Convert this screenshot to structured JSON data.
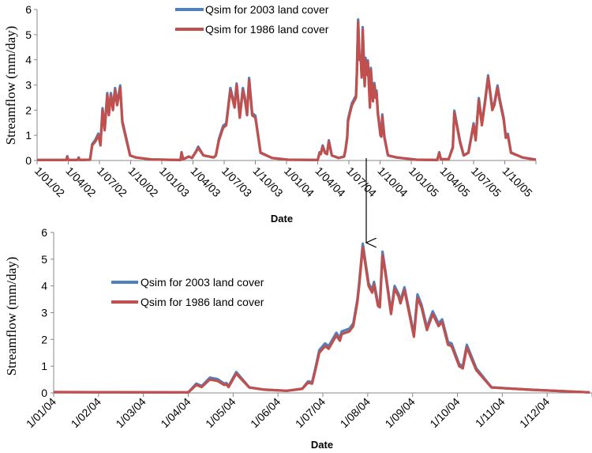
{
  "chart_data": [
    {
      "type": "line",
      "xlabel": "Date",
      "ylabel": "Streamflow (mm/day)",
      "ylim": [
        0,
        6
      ],
      "yticks": [
        "0",
        "1",
        "2",
        "3",
        "4",
        "5",
        "6"
      ],
      "x_unit": "months since 1/01/02",
      "xlim": [
        0,
        48
      ],
      "xtick_labels": [
        "1/01/02",
        "1/04/02",
        "1/07/02",
        "1/10/02",
        "1/01/03",
        "1/04/03",
        "1/07/03",
        "1/10/03",
        "1/01/04",
        "1/04/04",
        "1/07/04",
        "1/10/04",
        "1/01/05",
        "1/04/05",
        "1/07/05",
        "1/10/05"
      ],
      "legend": "top-center",
      "x": [
        0,
        2.8,
        2.9,
        3.0,
        3.9,
        4.0,
        4.1,
        5.1,
        5.3,
        5.6,
        5.9,
        6.1,
        6.3,
        6.5,
        6.75,
        6.9,
        7.1,
        7.3,
        7.5,
        7.7,
        8.0,
        8.2,
        8.6,
        8.95,
        9.5,
        11,
        13.8,
        13.9,
        14.05,
        14.6,
        14.9,
        15.3,
        15.5,
        16.0,
        17.0,
        17.2,
        17.5,
        17.9,
        18.2,
        18.6,
        19.0,
        19.2,
        19.5,
        19.8,
        20.0,
        20.2,
        20.4,
        20.7,
        21.0,
        21.5,
        22.6,
        24.1,
        27.0,
        27.18,
        27.3,
        27.48,
        27.7,
        27.9,
        28.07,
        28.36,
        29.0,
        29.54,
        29.67,
        29.84,
        29.92,
        30.05,
        30.3,
        30.68,
        30.77,
        30.89,
        31.02,
        31.14,
        31.23,
        31.33,
        31.52,
        31.6,
        31.73,
        31.82,
        32.03,
        32.11,
        32.32,
        32.45,
        32.58,
        32.66,
        32.79,
        33.04,
        33.12,
        33.21,
        33.42,
        33.76,
        34.6,
        36.5,
        38.5,
        38.7,
        38.85,
        39.6,
        40.0,
        40.15,
        40.7,
        41.05,
        41.5,
        42.0,
        42.2,
        42.5,
        42.8,
        43.1,
        43.4,
        43.8,
        44.0,
        44.3,
        44.5,
        44.9,
        45.1,
        45.3,
        45.6,
        46.7,
        48
      ],
      "series": [
        {
          "name": "Qsim for 2003 land cover",
          "color": "#4F81BD",
          "values": [
            0.02,
            0.02,
            0.17,
            0.02,
            0.02,
            0.12,
            0.02,
            0.03,
            0.65,
            0.82,
            1.07,
            0.65,
            2.08,
            1.28,
            2.68,
            1.88,
            2.68,
            2.08,
            2.88,
            2.28,
            2.98,
            1.57,
            0.86,
            0.2,
            0.12,
            0.04,
            0.02,
            0.33,
            0.05,
            0.16,
            0.1,
            0.38,
            0.55,
            0.2,
            0.12,
            0.21,
            0.86,
            1.38,
            1.48,
            2.88,
            2.18,
            3.06,
            1.78,
            2.88,
            2.48,
            1.88,
            3.28,
            1.88,
            1.78,
            0.32,
            0.1,
            0.03,
            0.02,
            0.33,
            0.27,
            0.6,
            0.33,
            0.27,
            0.8,
            0.2,
            0.1,
            0.16,
            0.44,
            0.96,
            1.63,
            1.88,
            2.28,
            2.58,
            3.48,
            5.6,
            4.08,
            4.18,
            3.38,
            5.3,
            3.03,
            4.08,
            3.48,
            3.98,
            2.18,
            3.68,
            2.43,
            3.08,
            2.58,
            2.78,
            1.93,
            1.07,
            1.02,
            1.83,
            0.96,
            0.2,
            0.12,
            0.03,
            0.02,
            0.33,
            0.05,
            0.05,
            0.55,
            1.98,
            0.76,
            0.2,
            0.32,
            1.48,
            0.86,
            2.48,
            1.48,
            2.38,
            3.38,
            2.08,
            2.28,
            2.98,
            2.48,
            1.68,
            0.96,
            1.06,
            0.32,
            0.12,
            0.03
          ]
        },
        {
          "name": "Qsim for 1986 land cover",
          "color": "#C0504D",
          "values": [
            0.02,
            0.02,
            0.15,
            0.02,
            0.02,
            0.1,
            0.02,
            0.03,
            0.6,
            0.75,
            1.0,
            0.6,
            2.0,
            1.2,
            2.6,
            1.8,
            2.6,
            2.0,
            2.8,
            2.2,
            2.9,
            1.5,
            0.8,
            0.2,
            0.12,
            0.04,
            0.02,
            0.3,
            0.05,
            0.15,
            0.1,
            0.35,
            0.5,
            0.2,
            0.12,
            0.2,
            0.8,
            1.3,
            1.4,
            2.8,
            2.1,
            3.0,
            1.7,
            2.8,
            2.4,
            1.8,
            3.2,
            1.8,
            1.7,
            0.3,
            0.1,
            0.03,
            0.02,
            0.3,
            0.25,
            0.55,
            0.3,
            0.25,
            0.75,
            0.2,
            0.1,
            0.15,
            0.4,
            0.9,
            1.55,
            1.8,
            2.2,
            2.5,
            3.4,
            5.5,
            4.0,
            4.1,
            3.3,
            5.2,
            2.95,
            4.0,
            3.4,
            3.9,
            2.1,
            3.6,
            2.35,
            3.0,
            2.5,
            2.7,
            1.85,
            1.0,
            0.95,
            1.75,
            0.9,
            0.2,
            0.12,
            0.03,
            0.02,
            0.3,
            0.05,
            0.05,
            0.5,
            1.9,
            0.7,
            0.2,
            0.3,
            1.4,
            0.8,
            2.4,
            1.4,
            2.3,
            3.3,
            2.0,
            2.2,
            2.9,
            2.4,
            1.6,
            0.9,
            1.0,
            0.3,
            0.12,
            0.03
          ]
        }
      ]
    },
    {
      "type": "line",
      "xlabel": "Date",
      "ylabel": "Streamflow (mm/day)",
      "ylim": [
        0,
        6
      ],
      "yticks": [
        "0",
        "1",
        "2",
        "3",
        "4",
        "5",
        "6"
      ],
      "x_unit": "months since 1/01/04",
      "xlim": [
        0,
        12
      ],
      "xtick_labels": [
        "1/01/04",
        "1/02/04",
        "1/03/04",
        "1/04/04",
        "1/05/04",
        "1/06/04",
        "1/07/04",
        "1/08/04",
        "1/09/04",
        "1/10/04",
        "1/11/04",
        "1/12/04"
      ],
      "legend": "upper-left",
      "annotation": "arrow from top chart to the peak near 1/08/04",
      "x": [
        0,
        3.0,
        3.18,
        3.3,
        3.48,
        3.65,
        3.8,
        3.85,
        3.9,
        4.07,
        4.36,
        4.7,
        5.2,
        5.54,
        5.67,
        5.76,
        5.84,
        5.92,
        6.05,
        6.13,
        6.3,
        6.38,
        6.42,
        6.59,
        6.68,
        6.77,
        6.81,
        6.89,
        7.02,
        7.1,
        7.14,
        7.23,
        7.27,
        7.33,
        7.4,
        7.52,
        7.6,
        7.69,
        7.73,
        7.82,
        8.03,
        8.11,
        8.2,
        8.32,
        8.45,
        8.58,
        8.66,
        8.79,
        8.87,
        9.04,
        9.12,
        9.21,
        9.42,
        9.76,
        10.6,
        11.95
      ],
      "series": [
        {
          "name": "Qsim for 2003 land cover",
          "color": "#4F81BD",
          "values": [
            0.03,
            0.02,
            0.35,
            0.26,
            0.57,
            0.52,
            0.35,
            0.37,
            0.26,
            0.78,
            0.21,
            0.12,
            0.08,
            0.16,
            0.43,
            0.4,
            0.97,
            1.6,
            1.85,
            1.75,
            2.25,
            2.05,
            2.3,
            2.4,
            2.6,
            3.5,
            4.1,
            5.58,
            4.1,
            3.85,
            4.15,
            3.35,
            3.3,
            5.28,
            4.5,
            3.05,
            4.0,
            3.7,
            3.45,
            3.95,
            2.2,
            3.68,
            3.3,
            2.45,
            3.05,
            2.6,
            2.75,
            1.9,
            1.85,
            1.08,
            1.0,
            1.8,
            0.92,
            0.21,
            0.12,
            0.02
          ]
        },
        {
          "name": "Qsim for 1986 land cover",
          "color": "#C0504D",
          "values": [
            0.03,
            0.02,
            0.3,
            0.22,
            0.5,
            0.45,
            0.3,
            0.32,
            0.22,
            0.72,
            0.2,
            0.12,
            0.08,
            0.15,
            0.38,
            0.35,
            0.9,
            1.5,
            1.75,
            1.65,
            2.15,
            1.95,
            2.2,
            2.3,
            2.5,
            3.4,
            4.0,
            5.45,
            4.0,
            3.75,
            4.05,
            3.25,
            3.2,
            5.15,
            4.4,
            2.95,
            3.9,
            3.6,
            3.35,
            3.85,
            2.1,
            3.55,
            3.2,
            2.35,
            2.95,
            2.5,
            2.65,
            1.8,
            1.75,
            1.0,
            0.92,
            1.7,
            0.85,
            0.2,
            0.12,
            0.02
          ]
        }
      ]
    }
  ]
}
